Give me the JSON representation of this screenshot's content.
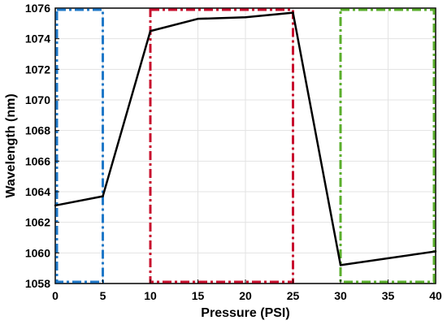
{
  "chart_data": {
    "type": "line",
    "title": "",
    "xlabel": "Pressure (PSI)",
    "ylabel": "Wavelength (nm)",
    "xlim": [
      0,
      40
    ],
    "ylim": [
      1058,
      1076
    ],
    "xticks": [
      0,
      5,
      10,
      15,
      20,
      25,
      30,
      35,
      40
    ],
    "yticks": [
      1058,
      1060,
      1062,
      1064,
      1066,
      1068,
      1070,
      1072,
      1074,
      1076
    ],
    "grid": true,
    "legend": "none",
    "series": [
      {
        "color": "#000000",
        "x": [
          0,
          5,
          10,
          15,
          20,
          25,
          30,
          40
        ],
        "y": [
          1063.1,
          1063.7,
          1074.5,
          1075.3,
          1075.4,
          1075.7,
          1059.2,
          1060.1
        ]
      }
    ],
    "regions": [
      {
        "x0": 0,
        "x1": 5,
        "y0": 1058,
        "y1": 1076,
        "color": "#1f78c8",
        "style": "dash-dot"
      },
      {
        "x0": 10,
        "x1": 25,
        "y0": 1058,
        "y1": 1076,
        "color": "#c8102e",
        "style": "dash-dot"
      },
      {
        "x0": 30,
        "x1": 40,
        "y0": 1058,
        "y1": 1076,
        "color": "#5aae2b",
        "style": "dash-dot"
      }
    ]
  }
}
